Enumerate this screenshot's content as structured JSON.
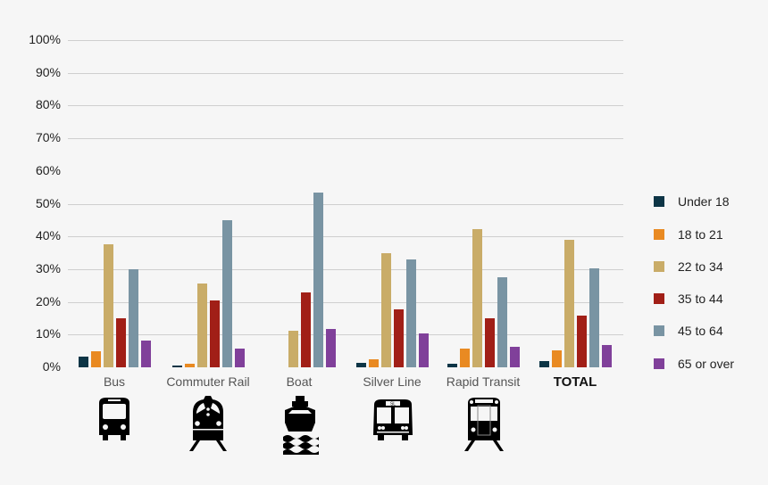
{
  "chart_data": {
    "type": "bar",
    "title": "",
    "xlabel": "",
    "ylabel": "",
    "ylim": [
      0,
      100
    ],
    "y_ticks": [
      "0%",
      "10%",
      "20%",
      "30%",
      "40%",
      "50%",
      "60%",
      "70%",
      "80%",
      "90%",
      "100%"
    ],
    "grid": true,
    "legend_position": "right",
    "categories": [
      "Bus",
      "Commuter Rail",
      "Boat",
      "Silver Line",
      "Rapid Transit",
      "TOTAL"
    ],
    "series": [
      {
        "name": "Under 18",
        "color": "#0d3546",
        "values": [
          3.3,
          0.5,
          0,
          1.3,
          1.2,
          1.8
        ]
      },
      {
        "name": "18 to 21",
        "color": "#e98a22",
        "values": [
          5.0,
          1.2,
          0,
          2.5,
          5.8,
          5.1
        ]
      },
      {
        "name": "22 to 34",
        "color": "#c9ac68",
        "values": [
          37.6,
          25.7,
          11.2,
          35.0,
          42.3,
          39.1
        ]
      },
      {
        "name": "35 to 44",
        "color": "#a11f17",
        "values": [
          15.0,
          20.4,
          23.0,
          17.7,
          15.0,
          15.7
        ]
      },
      {
        "name": "45 to 64",
        "color": "#7994a3",
        "values": [
          30.0,
          44.9,
          53.5,
          33.0,
          27.6,
          30.3
        ]
      },
      {
        "name": "65 or over",
        "color": "#80409a",
        "values": [
          8.2,
          5.8,
          11.8,
          10.3,
          6.3,
          6.9
        ]
      }
    ],
    "category_icons": [
      "bus-icon",
      "commuter-rail-icon",
      "boat-icon",
      "silver-line-bus-icon",
      "rapid-transit-icon",
      null
    ],
    "icon_text": {
      "silver_line_sign": "SL"
    }
  }
}
